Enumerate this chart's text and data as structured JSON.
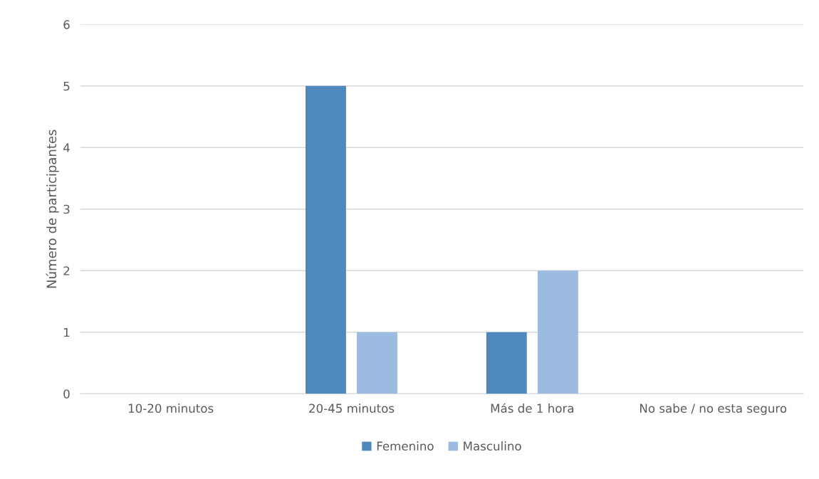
{
  "chart_data": {
    "type": "bar",
    "ylabel": "Número de participantes",
    "categories": [
      "10-20 minutos",
      "20-45 minutos",
      "Más de 1 hora",
      "No sabe / no esta seguro"
    ],
    "series": [
      {
        "name": "Femenino",
        "color": "#4f88bd",
        "values": [
          0,
          5,
          1,
          0
        ]
      },
      {
        "name": "Masculino",
        "color": "#9bbbe0",
        "values": [
          0,
          1,
          2,
          0
        ]
      }
    ],
    "ylim": [
      0,
      6
    ],
    "yticks": [
      0,
      1,
      2,
      3,
      4,
      5,
      6
    ],
    "grid": "y",
    "legend": "bottom"
  }
}
